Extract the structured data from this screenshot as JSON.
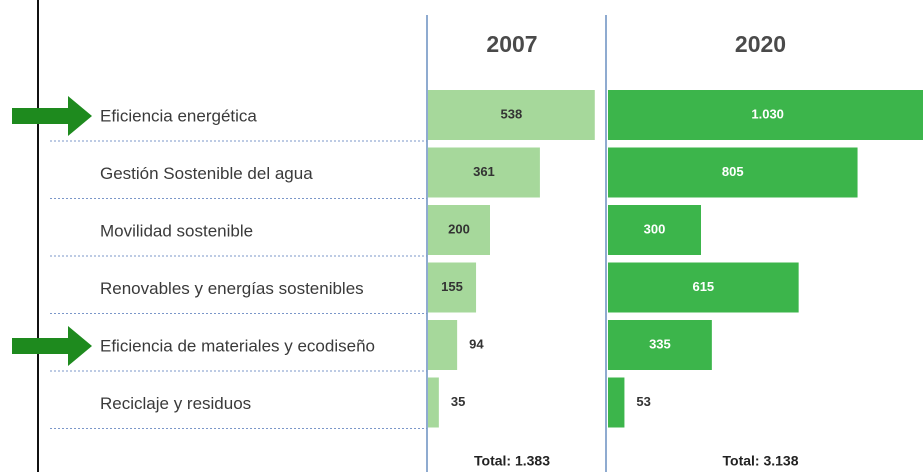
{
  "chart_data": {
    "type": "bar",
    "orientation": "horizontal",
    "categories": [
      "Eficiencia energética",
      "Gestión Sostenible del agua",
      "Movilidad sostenible",
      "Renovables y energías sostenibles",
      "Eficiencia de materiales y ecodiseño",
      "Reciclaje y residuos"
    ],
    "series": [
      {
        "name": "2007",
        "color": "#a6d89b",
        "values": [
          538,
          361,
          200,
          155,
          94,
          35
        ],
        "total": "Total: 1.383"
      },
      {
        "name": "2020",
        "color": "#3cb54b",
        "values": [
          1030,
          805,
          300,
          615,
          335,
          53
        ],
        "value_labels": [
          "1.030",
          "805",
          "300",
          "615",
          "335",
          "53"
        ],
        "total": "Total: 3.138"
      }
    ]
  }
}
